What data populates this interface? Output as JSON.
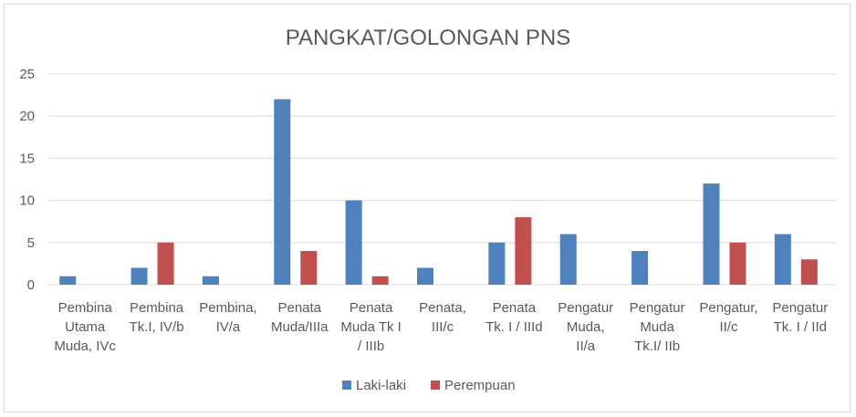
{
  "chart_data": {
    "type": "bar",
    "title": "PANGKAT/GOLONGAN PNS",
    "categories": [
      [
        "Pembina",
        "Utama",
        "Muda, IVc"
      ],
      [
        "Pembina",
        "Tk.I, IV/b"
      ],
      [
        "Pembina,",
        "IV/a"
      ],
      [
        "Penata",
        "Muda/IIIa"
      ],
      [
        "Penata",
        "Muda Tk I",
        "/ IIIb"
      ],
      [
        "Penata,",
        "III/c"
      ],
      [
        "Penata",
        "Tk. I / IIId"
      ],
      [
        "Pengatur",
        "Muda,",
        "II/a"
      ],
      [
        "Pengatur",
        "Muda",
        "Tk.I/ IIb"
      ],
      [
        "Pengatur,",
        "II/c"
      ],
      [
        "Pengatur",
        "Tk. I / IId"
      ]
    ],
    "series": [
      {
        "name": "Laki-laki",
        "color": "#4f81bd",
        "values": [
          1,
          2,
          1,
          22,
          10,
          2,
          5,
          6,
          4,
          12,
          6
        ]
      },
      {
        "name": "Perempuan",
        "color": "#c0504d",
        "values": [
          0,
          5,
          0,
          4,
          1,
          0,
          8,
          0,
          0,
          5,
          3
        ]
      }
    ],
    "ylim": [
      0,
      25
    ],
    "yticks": [
      0,
      5,
      10,
      15,
      20,
      25
    ],
    "grid": true,
    "legend": "bottom"
  }
}
